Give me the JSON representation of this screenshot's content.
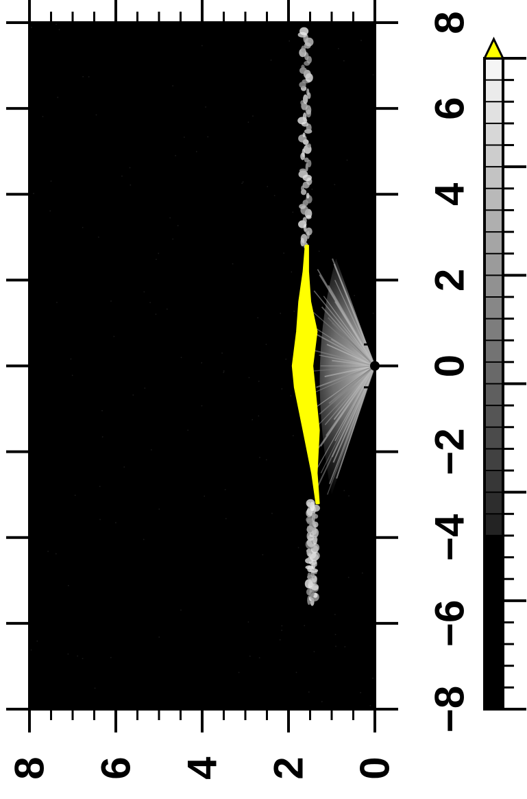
{
  "chart_data": {
    "type": "heatmap",
    "orientation": "rotated-90",
    "title": "",
    "xlabel": "",
    "ylabel": "",
    "x_axis": {
      "range": [
        -8,
        8
      ],
      "ticks": [
        -8,
        -6,
        -4,
        -2,
        0,
        2,
        4,
        6,
        8
      ],
      "tick_labels": [
        "−8",
        "−6",
        "−4",
        "−2",
        "0",
        "2",
        "4",
        "6",
        "8"
      ]
    },
    "y_axis": {
      "range": [
        0,
        8
      ],
      "ticks": [
        0,
        2,
        4,
        6,
        8
      ],
      "tick_labels": [
        "0",
        "2",
        "4",
        "6",
        "8"
      ]
    },
    "colorbar": {
      "levels": 30,
      "colormap": "black-to-white grayscale",
      "overflow_color": "#ffff00",
      "extend": "max"
    },
    "features": {
      "source_point": {
        "x": 0,
        "y": 0
      },
      "saturated_band": {
        "color": "#ffff00",
        "x_extent": [
          -3.2,
          2.8
        ],
        "y_outer": [
          {
            "x": -3.2,
            "y": 1.35
          },
          {
            "x": -2.5,
            "y": 1.45
          },
          {
            "x": -1.5,
            "y": 1.65
          },
          {
            "x": -0.5,
            "y": 1.85
          },
          {
            "x": 0.0,
            "y": 1.9
          },
          {
            "x": 0.8,
            "y": 1.8
          },
          {
            "x": 1.5,
            "y": 1.75
          },
          {
            "x": 2.2,
            "y": 1.65
          },
          {
            "x": 2.8,
            "y": 1.6
          }
        ],
        "y_inner": [
          {
            "x": -3.2,
            "y": 1.3
          },
          {
            "x": -2.5,
            "y": 1.35
          },
          {
            "x": -1.5,
            "y": 1.3
          },
          {
            "x": -0.5,
            "y": 1.4
          },
          {
            "x": 0.0,
            "y": 1.45
          },
          {
            "x": 0.8,
            "y": 1.35
          },
          {
            "x": 1.5,
            "y": 1.5
          },
          {
            "x": 2.2,
            "y": 1.55
          },
          {
            "x": 2.8,
            "y": 1.55
          }
        ]
      },
      "gray_filaments": [
        {
          "x_extent": [
            -5.5,
            -3.2
          ],
          "y": 1.45
        },
        {
          "x_extent": [
            2.8,
            7.8
          ],
          "y": 1.6
        }
      ],
      "fan_rays_extent_x": [
        -3.0,
        2.5
      ]
    },
    "colors": {
      "background": "#000000",
      "saturated": "#ffff00",
      "axes": "#000000"
    }
  }
}
